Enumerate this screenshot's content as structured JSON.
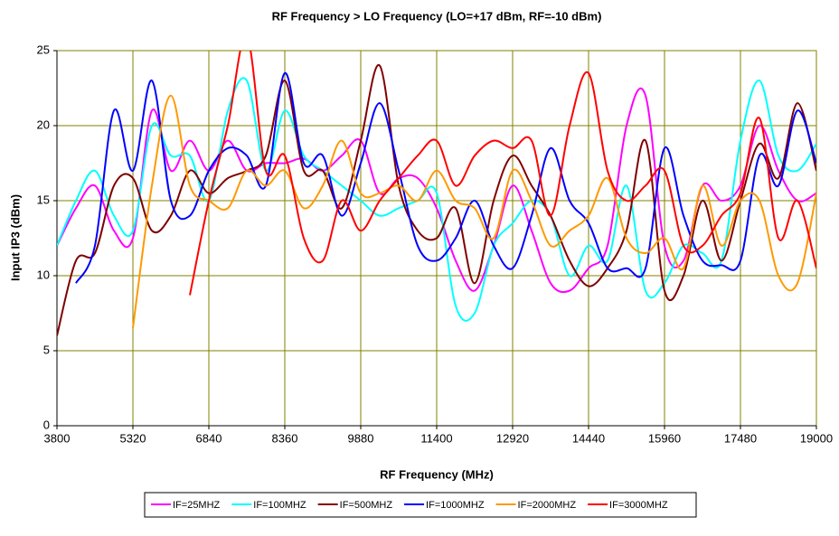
{
  "chart_data": {
    "type": "line",
    "title": "RF Frequency > LO Frequency (LO=+17 dBm, RF=-10 dBm)",
    "x_label": "RF Frequency (MHz)",
    "y_label": "Input IP3 (dBm)",
    "x": [
      3800,
      4180,
      4560,
      4940,
      5320,
      5700,
      6080,
      6460,
      6840,
      7220,
      7600,
      7980,
      8360,
      8740,
      9120,
      9500,
      9880,
      10260,
      10640,
      11020,
      11400,
      11780,
      12160,
      12540,
      12920,
      13300,
      13680,
      14060,
      14440,
      14820,
      15200,
      15580,
      15960,
      16340,
      16720,
      17100,
      17480,
      17860,
      18240,
      18620,
      19000
    ],
    "series": [
      {
        "name": "IF=25MHZ",
        "color": "#ff00ff",
        "values": [
          12,
          14.5,
          16,
          13,
          12.5,
          21,
          17,
          19,
          17,
          19,
          17,
          17.5,
          17.5,
          17.8,
          17,
          18,
          19,
          15.5,
          16.5,
          16.5,
          14.5,
          11,
          9,
          12,
          16,
          13,
          9.5,
          9,
          10.5,
          12,
          20,
          22,
          12,
          11,
          16,
          15,
          16,
          20,
          17,
          15,
          15.5
        ]
      },
      {
        "name": "IF=100MHZ",
        "color": "#00ffff",
        "values": [
          12,
          15,
          17,
          14,
          13,
          20,
          18,
          18,
          15,
          21,
          23,
          17,
          21,
          18,
          17,
          16,
          15,
          14,
          14.5,
          15,
          15.5,
          8,
          7.5,
          12,
          13.5,
          15,
          14,
          10,
          12,
          11,
          16,
          9,
          9.5,
          12,
          11.5,
          11,
          19,
          23,
          18,
          17,
          18.8
        ]
      },
      {
        "name": "IF=500MHZ",
        "color": "#800000",
        "values": [
          6,
          11,
          11.5,
          16,
          16.5,
          13,
          14,
          17,
          15.5,
          16.5,
          17,
          18,
          23,
          17,
          17,
          14.5,
          19,
          24,
          16,
          13,
          12.5,
          14.5,
          9.5,
          15,
          18,
          16,
          14,
          11,
          9.3,
          10.5,
          13,
          19,
          9,
          10,
          15,
          11,
          15,
          18.8,
          16.5,
          21.5,
          17
        ]
      },
      {
        "name": "IF=1000MHZ",
        "color": "#0000ff",
        "values": [
          null,
          9.5,
          12,
          21,
          17,
          23,
          15,
          14,
          17,
          18.5,
          18,
          16,
          23.5,
          17.5,
          18,
          14,
          17.5,
          21.5,
          17,
          12,
          11,
          12.5,
          15,
          12,
          10.5,
          14,
          18.5,
          15,
          13.5,
          10.5,
          10.5,
          10.5,
          18.5,
          14,
          11,
          10.7,
          11,
          18,
          16,
          21,
          17.5
        ]
      },
      {
        "name": "IF=2000MHZ",
        "color": "#ff9900",
        "values": [
          null,
          null,
          null,
          null,
          6.5,
          16,
          22,
          16,
          15,
          14.5,
          17,
          16,
          17,
          14.5,
          16,
          19,
          15.5,
          15.5,
          16,
          15,
          17,
          15,
          14.5,
          12.5,
          17,
          15,
          12,
          13,
          14,
          16.5,
          12.5,
          11.5,
          12.5,
          10.5,
          16,
          12,
          15,
          15,
          10,
          9.5,
          15.5
        ]
      },
      {
        "name": "IF=3000MHZ",
        "color": "#ff0000",
        "values": [
          null,
          null,
          null,
          null,
          null,
          null,
          null,
          8.7,
          15,
          20,
          26,
          17,
          18,
          12.5,
          11,
          15,
          13,
          15,
          16.5,
          18,
          19,
          16,
          18,
          19,
          18.5,
          19,
          14,
          20,
          23.5,
          17,
          15,
          16,
          17,
          12,
          12,
          14,
          15.5,
          20.5,
          12.5,
          15,
          10.5
        ]
      }
    ],
    "xlim": [
      3800,
      19000
    ],
    "xticks": [
      3800,
      5320,
      6840,
      8360,
      9880,
      11400,
      12920,
      14440,
      15960,
      17480,
      19000
    ],
    "ylim": [
      0,
      25
    ],
    "yticks": [
      0,
      5,
      10,
      15,
      20,
      25
    ],
    "grid": true,
    "grid_color": "#808000",
    "legend": "bottom"
  }
}
